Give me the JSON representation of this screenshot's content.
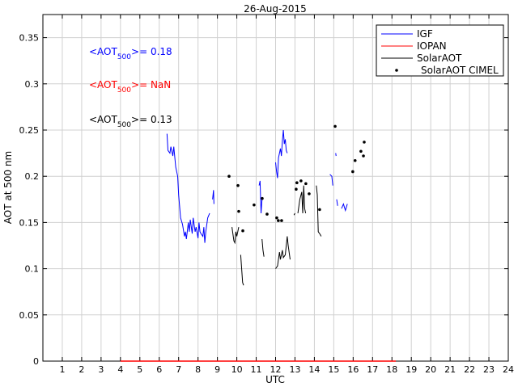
{
  "chart_data": {
    "type": "line",
    "title": "26-Aug-2015",
    "xlabel": "UTC",
    "ylabel": "AOT at 500 nm",
    "xlim": [
      0,
      24
    ],
    "ylim": [
      0,
      0.375
    ],
    "grid": true,
    "xticks": [
      1,
      2,
      3,
      4,
      5,
      6,
      7,
      8,
      9,
      10,
      11,
      12,
      13,
      14,
      15,
      16,
      17,
      18,
      19,
      20,
      21,
      22,
      23,
      24
    ],
    "yticks": [
      0,
      0.05,
      0.1,
      0.15,
      0.2,
      0.25,
      0.3,
      0.35
    ],
    "ytick_labels": [
      "0",
      "0.05",
      "0.1",
      "0.15",
      "0.2",
      "0.25",
      "0.3",
      "0.35"
    ],
    "legend_position": "top-right",
    "series": [
      {
        "name": "IGF",
        "color": "#0000ff",
        "style": "line",
        "segments": [
          [
            [
              6.4,
              0.246
            ],
            [
              6.45,
              0.228
            ],
            [
              6.55,
              0.225
            ],
            [
              6.6,
              0.232
            ],
            [
              6.7,
              0.222
            ],
            [
              6.75,
              0.232
            ],
            [
              6.85,
              0.21
            ],
            [
              6.95,
              0.2
            ],
            [
              7.0,
              0.18
            ],
            [
              7.1,
              0.155
            ],
            [
              7.2,
              0.148
            ],
            [
              7.3,
              0.135
            ],
            [
              7.35,
              0.14
            ],
            [
              7.4,
              0.132
            ],
            [
              7.5,
              0.15
            ],
            [
              7.55,
              0.14
            ],
            [
              7.6,
              0.153
            ],
            [
              7.7,
              0.138
            ],
            [
              7.75,
              0.155
            ],
            [
              7.85,
              0.14
            ],
            [
              7.9,
              0.145
            ],
            [
              8.0,
              0.133
            ],
            [
              8.05,
              0.15
            ],
            [
              8.1,
              0.14
            ],
            [
              8.15,
              0.138
            ],
            [
              8.25,
              0.135
            ],
            [
              8.3,
              0.145
            ],
            [
              8.35,
              0.128
            ],
            [
              8.4,
              0.14
            ],
            [
              8.5,
              0.155
            ],
            [
              8.6,
              0.16
            ]
          ],
          [
            [
              8.75,
              0.175
            ],
            [
              8.8,
              0.185
            ],
            [
              8.82,
              0.17
            ]
          ],
          [
            [
              11.15,
              0.19
            ],
            [
              11.2,
              0.195
            ],
            [
              11.25,
              0.16
            ],
            [
              11.3,
              0.175
            ]
          ],
          [
            [
              12.0,
              0.215
            ],
            [
              12.05,
              0.205
            ],
            [
              12.1,
              0.198
            ],
            [
              12.15,
              0.22
            ],
            [
              12.2,
              0.225
            ],
            [
              12.25,
              0.23
            ],
            [
              12.3,
              0.222
            ],
            [
              12.35,
              0.238
            ],
            [
              12.4,
              0.25
            ],
            [
              12.45,
              0.235
            ],
            [
              12.5,
              0.24
            ],
            [
              12.55,
              0.228
            ],
            [
              12.6,
              0.225
            ]
          ],
          [
            [
              14.8,
              0.202
            ],
            [
              14.9,
              0.2
            ],
            [
              14.95,
              0.19
            ]
          ],
          [
            [
              15.1,
              0.225
            ],
            [
              15.12,
              0.222
            ]
          ],
          [
            [
              15.15,
              0.175
            ],
            [
              15.2,
              0.168
            ]
          ],
          [
            [
              15.4,
              0.165
            ],
            [
              15.5,
              0.17
            ],
            [
              15.6,
              0.163
            ],
            [
              15.7,
              0.17
            ]
          ]
        ]
      },
      {
        "name": "IOPAN",
        "color": "#ff0000",
        "style": "line",
        "segments": [
          [
            [
              4.0,
              0
            ],
            [
              18.2,
              0
            ]
          ]
        ]
      },
      {
        "name": "SolarAOT",
        "color": "#000000",
        "style": "line",
        "segments": [
          [
            [
              9.75,
              0.145
            ],
            [
              9.85,
              0.13
            ],
            [
              9.9,
              0.128
            ],
            [
              9.95,
              0.14
            ],
            [
              10.0,
              0.135
            ],
            [
              10.1,
              0.145
            ]
          ],
          [
            [
              10.2,
              0.115
            ],
            [
              10.3,
              0.085
            ],
            [
              10.35,
              0.082
            ]
          ],
          [
            [
              11.3,
              0.132
            ],
            [
              11.35,
              0.12
            ],
            [
              11.4,
              0.113
            ]
          ],
          [
            [
              12.0,
              0.1
            ],
            [
              12.1,
              0.103
            ],
            [
              12.2,
              0.118
            ],
            [
              12.25,
              0.11
            ],
            [
              12.35,
              0.12
            ],
            [
              12.4,
              0.112
            ],
            [
              12.5,
              0.115
            ],
            [
              12.6,
              0.135
            ],
            [
              12.65,
              0.125
            ],
            [
              12.75,
              0.11
            ]
          ],
          [
            [
              12.95,
              0.158
            ],
            [
              13.0,
              0.16
            ]
          ],
          [
            [
              13.15,
              0.16
            ],
            [
              13.25,
              0.175
            ],
            [
              13.35,
              0.183
            ],
            [
              13.4,
              0.16
            ],
            [
              13.45,
              0.19
            ],
            [
              13.5,
              0.165
            ],
            [
              13.55,
              0.16
            ]
          ],
          [
            [
              14.1,
              0.19
            ],
            [
              14.15,
              0.18
            ],
            [
              14.2,
              0.14
            ],
            [
              14.3,
              0.137
            ],
            [
              14.35,
              0.135
            ]
          ]
        ]
      },
      {
        "name": "SolarAOT CIMEL",
        "color": "#000000",
        "style": "points",
        "points": [
          [
            9.6,
            0.2
          ],
          [
            10.06,
            0.19
          ],
          [
            10.1,
            0.162
          ],
          [
            10.31,
            0.141
          ],
          [
            10.89,
            0.169
          ],
          [
            11.31,
            0.176
          ],
          [
            11.56,
            0.159
          ],
          [
            12.06,
            0.155
          ],
          [
            12.14,
            0.152
          ],
          [
            12.31,
            0.152
          ],
          [
            13.06,
            0.186
          ],
          [
            13.1,
            0.193
          ],
          [
            13.31,
            0.195
          ],
          [
            13.56,
            0.192
          ],
          [
            13.73,
            0.181
          ],
          [
            14.27,
            0.164
          ],
          [
            15.07,
            0.254
          ],
          [
            15.98,
            0.205
          ],
          [
            16.1,
            0.217
          ],
          [
            16.4,
            0.227
          ],
          [
            16.53,
            0.222
          ],
          [
            16.57,
            0.237
          ]
        ]
      }
    ],
    "annotations": [
      {
        "prefix": "<AOT",
        "sub": "500",
        "suffix": ">= 0.18",
        "color": "#0000ff"
      },
      {
        "prefix": "<AOT",
        "sub": "500",
        "suffix": ">=  NaN",
        "color": "#ff0000"
      },
      {
        "prefix": "<AOT",
        "sub": "500",
        "suffix": ">= 0.13",
        "color": "#000000"
      }
    ]
  }
}
